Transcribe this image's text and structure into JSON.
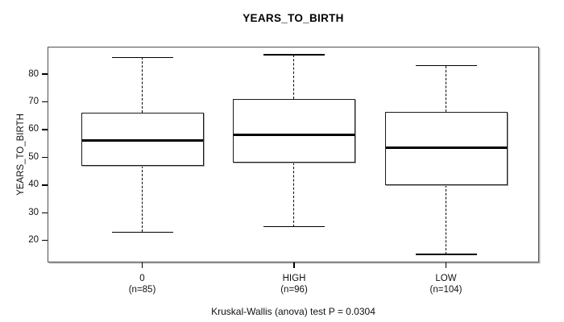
{
  "chart_data": {
    "type": "boxplot",
    "title": "YEARS_TO_BIRTH",
    "ylabel": "YEARS_TO_BIRTH",
    "xlabel": "",
    "caption": "Kruskal-Wallis (anova) test P = 0.0304",
    "p_value": 0.0304,
    "ylim": [
      12.1,
      89.9
    ],
    "yticks": [
      20,
      30,
      40,
      50,
      60,
      70,
      80
    ],
    "grid": false,
    "legend": null,
    "categories": [
      "0",
      "HIGH",
      "LOW"
    ],
    "groups": [
      {
        "label": "0",
        "count_label": "(n=85)",
        "n": 85,
        "whisker_low": 23,
        "q1": 47,
        "median": 56,
        "q3": 66,
        "whisker_high": 86,
        "outliers": []
      },
      {
        "label": "HIGH",
        "count_label": "(n=96)",
        "n": 96,
        "whisker_low": 25,
        "q1": 48,
        "median": 58,
        "q3": 71,
        "whisker_high": 87,
        "outliers": []
      },
      {
        "label": "LOW",
        "count_label": "(n=104)",
        "n": 104,
        "whisker_low": 15,
        "q1": 40,
        "median": 53.5,
        "q3": 66.5,
        "whisker_high": 83,
        "outliers": []
      }
    ],
    "colors": {
      "background": "#ffffff",
      "box_fill": "#ffffff",
      "line": "#000000",
      "frame": "#4f4f4f",
      "text": "#111111"
    }
  }
}
